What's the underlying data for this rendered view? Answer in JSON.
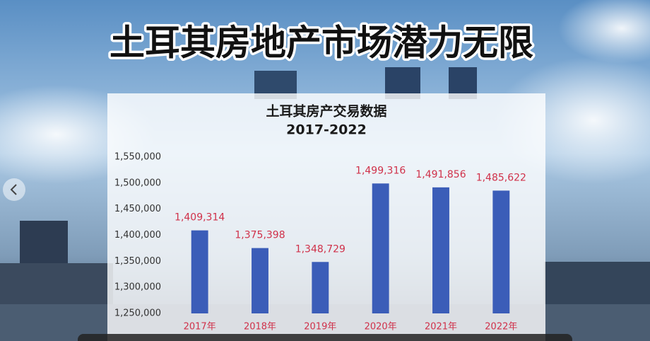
{
  "headline": "土耳其房地产市场潜力无限",
  "chart_data": {
    "type": "bar",
    "title": "土耳其房产交易数据",
    "subtitle": "2017-2022",
    "categories": [
      "2017年",
      "2018年",
      "2019年",
      "2020年",
      "2021年",
      "2022年"
    ],
    "values": [
      1409314,
      1375398,
      1348729,
      1499316,
      1491856,
      1485622
    ],
    "value_labels": [
      "1,409,314",
      "1,375,398",
      "1,348,729",
      "1,499,316",
      "1,491,856",
      "1,485,622"
    ],
    "color": "#3b5db8",
    "ylim": [
      1250000,
      1550000
    ],
    "yticks": [
      {
        "value": 1250000,
        "label": "1,250,000"
      },
      {
        "value": 1300000,
        "label": "1,300,000"
      },
      {
        "value": 1350000,
        "label": "1,350,000"
      },
      {
        "value": 1400000,
        "label": "1,400,000"
      },
      {
        "value": 1450000,
        "label": "1,450,000"
      },
      {
        "value": 1500000,
        "label": "1,500,000"
      },
      {
        "value": 1550000,
        "label": "1,550,000"
      }
    ],
    "grid": false
  }
}
